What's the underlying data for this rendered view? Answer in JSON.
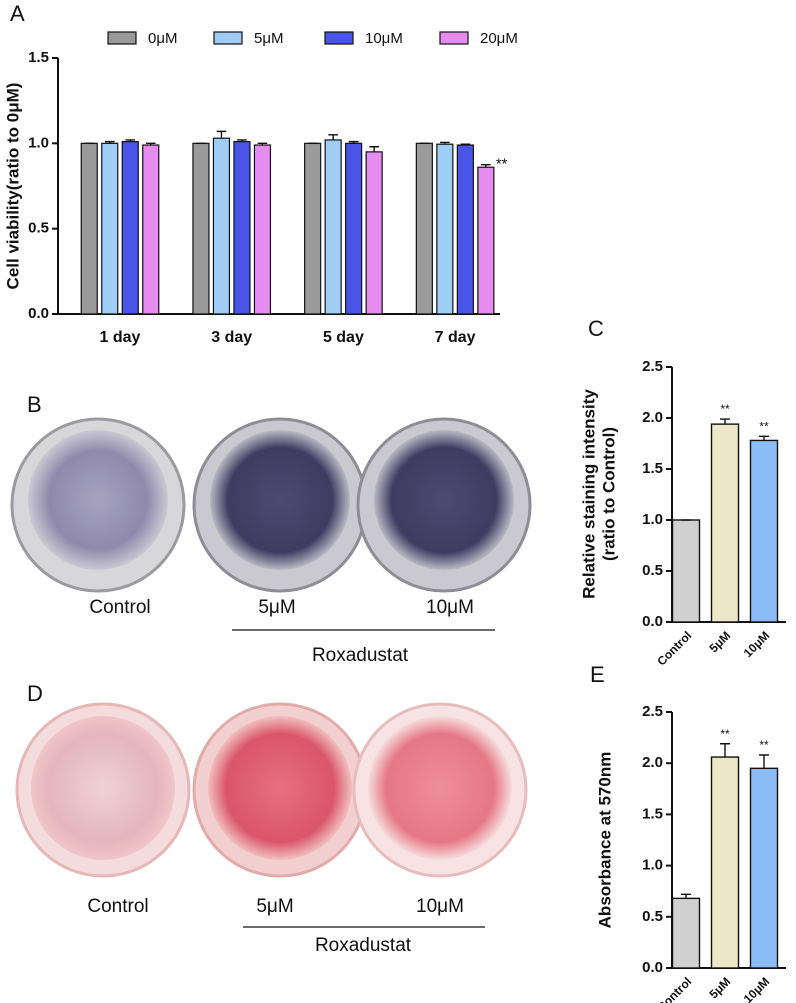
{
  "chart_data": [
    {
      "type": "bar",
      "panel_label": "A",
      "ylabel": [
        "Cell viability(ratio to 0μM)"
      ],
      "categories": [
        "1 day",
        "3 day",
        "5 day",
        "7 day"
      ],
      "series": [
        {
          "name": "0μM",
          "color": "#9a9a9a",
          "values": [
            1,
            1,
            1,
            1
          ],
          "errors": [
            0,
            0,
            0,
            0
          ]
        },
        {
          "name": "5μM",
          "color": "#9fcdf5",
          "values": [
            1.0,
            1.03,
            1.02,
            0.995
          ],
          "errors": [
            0.01,
            0.04,
            0.03,
            0.01
          ]
        },
        {
          "name": "10μM",
          "color": "#4a54e8",
          "values": [
            1.01,
            1.01,
            1.0,
            0.99
          ],
          "errors": [
            0.01,
            0.01,
            0.01,
            0.005
          ]
        },
        {
          "name": "20μM",
          "color": "#e68cf0",
          "values": [
            0.99,
            0.99,
            0.95,
            0.86
          ],
          "errors": [
            0.01,
            0.01,
            0.03,
            0.015
          ],
          "significance": [
            null,
            null,
            null,
            "**"
          ]
        }
      ],
      "ylim": [
        0,
        1.5
      ],
      "yticks": [
        {
          "value": 0,
          "label": "0.0"
        },
        0.5,
        {
          "value": 1,
          "label": "1.0"
        },
        1.5
      ]
    },
    {
      "type": "bar",
      "panel_label": "C",
      "ylabel": [
        "Relative staining intensity",
        "(ratio to Control)"
      ],
      "categories": [
        "Control",
        "5μM",
        "10μM"
      ],
      "values": [
        1.0,
        1.94,
        1.78
      ],
      "errors": [
        0,
        0.05,
        0.04
      ],
      "colors": [
        "#d0d0d0",
        "#ede6c8",
        "#8bbcf5"
      ],
      "significance": [
        null,
        "**",
        "**"
      ],
      "ylim": [
        0,
        2.5
      ],
      "yticks": [
        {
          "value": 0,
          "label": "0.0"
        },
        0.5,
        {
          "value": 1,
          "label": "1.0"
        },
        1.5,
        {
          "value": 2,
          "label": "2.0"
        },
        2.5
      ]
    },
    {
      "type": "bar",
      "panel_label": "E",
      "ylabel": [
        "Absorbance at 570nm"
      ],
      "categories": [
        "Control",
        "5μM",
        "10μM"
      ],
      "values": [
        0.68,
        2.06,
        1.95
      ],
      "errors": [
        0.04,
        0.13,
        0.13
      ],
      "colors": [
        "#d0d0d0",
        "#ede6c8",
        "#8bbcf5"
      ],
      "significance": [
        null,
        "**",
        "**"
      ],
      "ylim": [
        0,
        2.5
      ],
      "yticks": [
        {
          "value": 0,
          "label": "0.0"
        },
        0.5,
        {
          "value": 1,
          "label": "1.0"
        },
        1.5,
        {
          "value": 2,
          "label": "2.0"
        },
        2.5
      ]
    }
  ],
  "photos": [
    {
      "panel_label": "B",
      "labels": [
        "Control",
        "5μM",
        "10μM"
      ],
      "group_label": "Roxadustat"
    },
    {
      "panel_label": "D",
      "labels": [
        "Control",
        "5μM",
        "10μM"
      ],
      "group_label": "Roxadustat"
    }
  ]
}
